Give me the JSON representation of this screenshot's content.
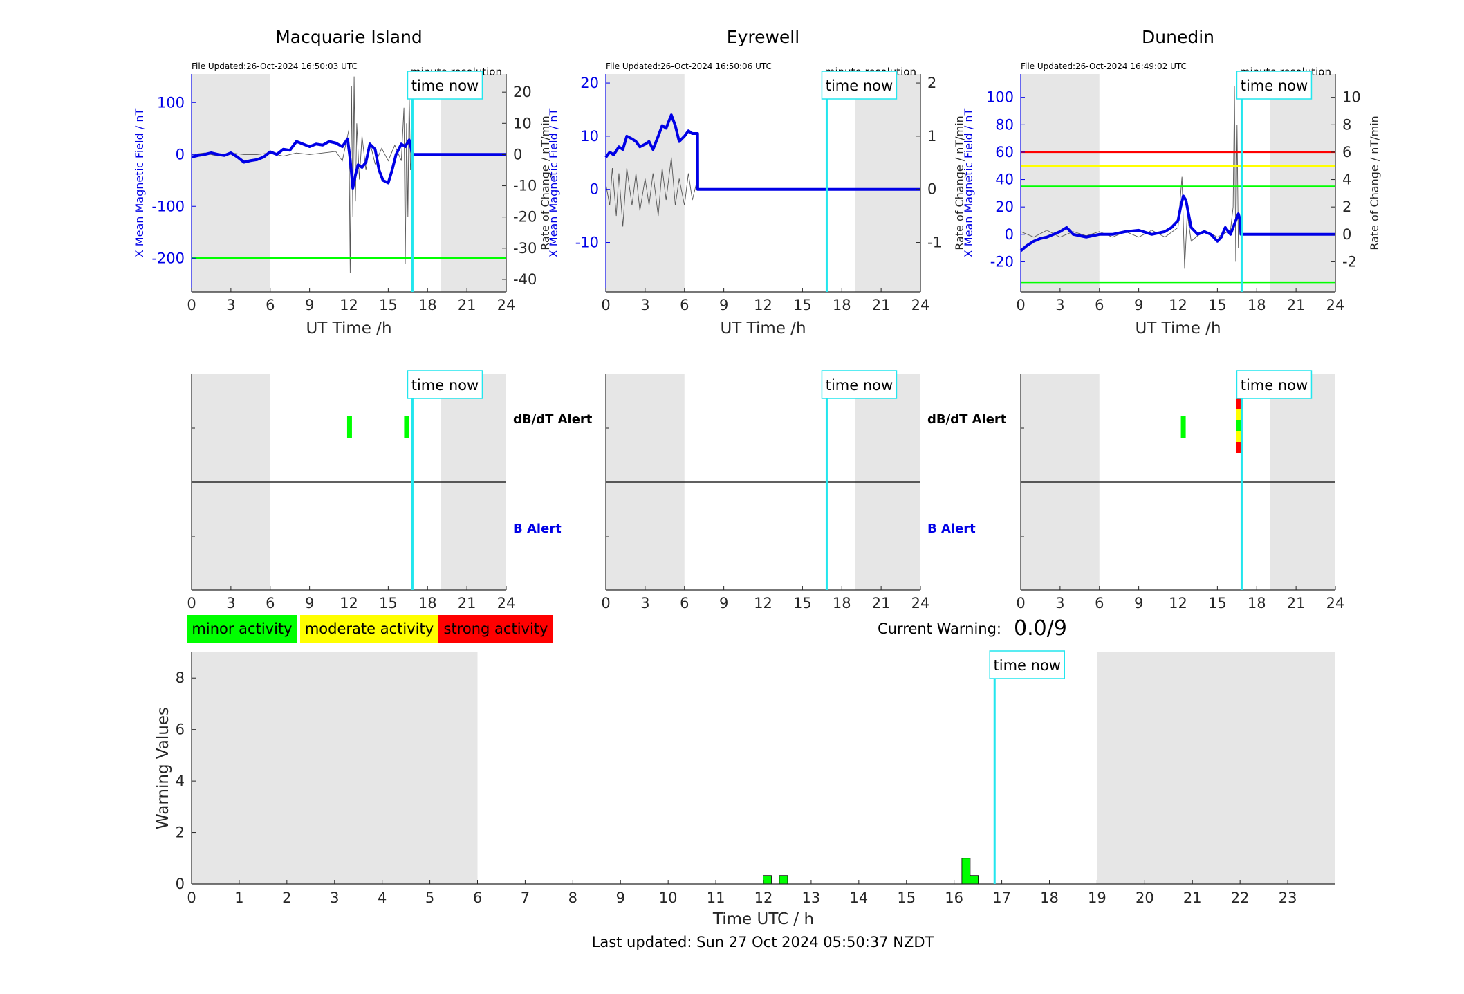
{
  "page": {
    "last_updated_label": "Last updated: Sun 27 Oct 2024 05:50:37 NZDT",
    "current_warning_label": "Current Warning:",
    "current_warning_value": "0.0/9"
  },
  "common": {
    "time_now_label": "time now",
    "time_now_hour": 16.85,
    "minute_resolution_label": "minute resolution",
    "utc_xlabel": "UT Time /h",
    "night_shading": [
      [
        0,
        6
      ],
      [
        19,
        24
      ]
    ],
    "color_blue": "#0000e6",
    "color_cyan": "#22e6ee",
    "color_shade": "#e6e6e6"
  },
  "legend": {
    "items": [
      {
        "label": "minor activity",
        "color": "#00ff00"
      },
      {
        "label": "moderate activity",
        "color": "#ffff00"
      },
      {
        "label": "strong activity",
        "color": "#ff0000"
      }
    ]
  },
  "chart_data": [
    {
      "type": "line",
      "title": "Macquarie Island",
      "file_updated": "File Updated:26-Oct-2024 16:50:03 UTC",
      "xlabel": "UT Time /h",
      "ylabel_left": "X Mean Magnetic Field / nT",
      "ylabel_right": "Rate of Change / nT/min",
      "xlim": [
        0,
        24
      ],
      "xticks": [
        0,
        3,
        6,
        9,
        12,
        15,
        18,
        21,
        24
      ],
      "ylim_left": [
        -265,
        155
      ],
      "yticks_left": [
        -200,
        -100,
        0,
        100
      ],
      "ylim_right": [
        -44,
        25.8
      ],
      "yticks_right": [
        -40,
        -30,
        -20,
        -10,
        0,
        10,
        20
      ],
      "thresholds": [
        {
          "value": -200,
          "color": "#00ff00"
        }
      ],
      "x_field": [
        0,
        0.5,
        1,
        1.5,
        2,
        2.5,
        3,
        3.5,
        4,
        4.5,
        5,
        5.5,
        6,
        6.5,
        7,
        7.5,
        8,
        8.5,
        9,
        9.5,
        10,
        10.5,
        11,
        11.5,
        11.9,
        12.1,
        12.3,
        12.5,
        12.7,
        13,
        13.3,
        13.6,
        14,
        14.3,
        14.6,
        15,
        15.3,
        15.6,
        16,
        16.3,
        16.6,
        16.85,
        24
      ],
      "y_field": [
        -5,
        -2,
        0,
        3,
        0,
        -2,
        3,
        -5,
        -15,
        -12,
        -10,
        -5,
        5,
        0,
        10,
        8,
        25,
        20,
        15,
        20,
        18,
        25,
        22,
        15,
        30,
        -10,
        -65,
        -40,
        -20,
        -25,
        -15,
        20,
        10,
        -30,
        -50,
        -55,
        -30,
        0,
        20,
        15,
        28,
        0,
        0
      ],
      "x_rate": [
        0,
        1,
        2,
        3,
        4,
        5,
        6,
        7,
        8,
        9,
        10,
        11,
        11.5,
        12,
        12.1,
        12.2,
        12.3,
        12.4,
        12.5,
        12.6,
        12.8,
        13,
        13.3,
        13.6,
        14,
        14.5,
        15,
        15.5,
        16,
        16.2,
        16.3,
        16.4,
        16.5,
        16.6,
        16.7,
        16.8
      ],
      "y_rate": [
        0,
        0.5,
        -0.5,
        0.5,
        0,
        0,
        0.5,
        -0.5,
        0.5,
        0,
        0.5,
        1,
        -2,
        8,
        -38,
        22,
        -20,
        25,
        -15,
        10,
        -8,
        6,
        -5,
        4,
        -3,
        2,
        -2,
        3,
        -2,
        15,
        -35,
        10,
        -20,
        20,
        -5,
        0
      ]
    },
    {
      "type": "line",
      "title": "Eyrewell",
      "file_updated": "File Updated:26-Oct-2024 16:50:06 UTC",
      "xlabel": "UT Time /h",
      "ylabel_left": "X Mean Magnetic Field / nT",
      "ylabel_right": "Rate of Change / nT/min",
      "xlim": [
        0,
        24
      ],
      "xticks": [
        0,
        3,
        6,
        9,
        12,
        15,
        18,
        21,
        24
      ],
      "ylim_left": [
        -19.3,
        21.7
      ],
      "yticks_left": [
        -10,
        0,
        10,
        20
      ],
      "ylim_right": [
        -1.93,
        2.17
      ],
      "yticks_right": [
        -1,
        0,
        1,
        2
      ],
      "thresholds": [],
      "x_field": [
        0,
        0.3,
        0.6,
        1,
        1.3,
        1.6,
        2,
        2.3,
        2.6,
        3,
        3.3,
        3.6,
        4,
        4.3,
        4.6,
        5,
        5.3,
        5.6,
        6,
        6.3,
        6.6,
        6.9,
        7.0,
        7.01,
        24
      ],
      "y_field": [
        6,
        7,
        6.5,
        8,
        7.5,
        10,
        9.5,
        9,
        8,
        8.5,
        9,
        7.5,
        10,
        12,
        11.5,
        14,
        12,
        9,
        10,
        11,
        10.5,
        10.5,
        10.5,
        0,
        0
      ],
      "x_rate": [
        0,
        0.3,
        0.5,
        0.8,
        1,
        1.3,
        1.6,
        2,
        2.3,
        2.6,
        3,
        3.3,
        3.6,
        4,
        4.3,
        4.6,
        5,
        5.3,
        5.6,
        6,
        6.3,
        6.6,
        6.9,
        7.0,
        24
      ],
      "y_rate": [
        0.1,
        -0.3,
        0.4,
        -0.5,
        0.3,
        -0.7,
        0.4,
        -0.3,
        0.3,
        -0.4,
        0.2,
        -0.3,
        0.3,
        -0.5,
        0.4,
        -0.2,
        0.6,
        -0.3,
        0.2,
        -0.3,
        0.3,
        -0.2,
        0.1,
        0,
        0
      ]
    },
    {
      "type": "line",
      "title": "Dunedin",
      "file_updated": "File Updated:26-Oct-2024 16:49:02 UTC",
      "xlabel": "UT Time /h",
      "ylabel_left": "X Mean Magnetic Field / nT",
      "ylabel_right": "Rate of Change / nT/min",
      "xlim": [
        0,
        24
      ],
      "xticks": [
        0,
        3,
        6,
        9,
        12,
        15,
        18,
        21,
        24
      ],
      "ylim_left": [
        -42,
        117
      ],
      "yticks_left": [
        -20,
        0,
        20,
        40,
        60,
        80,
        100
      ],
      "ylim_right": [
        -4.2,
        11.7
      ],
      "yticks_right": [
        -2,
        0,
        2,
        4,
        6,
        8,
        10
      ],
      "thresholds": [
        {
          "value": 60,
          "color": "#ff0000"
        },
        {
          "value": 50,
          "color": "#ffff00"
        },
        {
          "value": 35,
          "color": "#00ff00"
        },
        {
          "value": -35,
          "color": "#00ff00"
        }
      ],
      "x_field": [
        0,
        0.5,
        1,
        1.5,
        2,
        2.5,
        3,
        3.5,
        4,
        5,
        6,
        7,
        8,
        9,
        10,
        11,
        11.5,
        12,
        12.2,
        12.4,
        12.6,
        12.8,
        13,
        13.5,
        14,
        14.5,
        15,
        15.3,
        15.6,
        16,
        16.2,
        16.4,
        16.6,
        16.75,
        16.8,
        24
      ],
      "y_field": [
        -12,
        -8,
        -5,
        -3,
        -2,
        0,
        2,
        5,
        0,
        -2,
        0,
        0,
        2,
        3,
        0,
        2,
        5,
        10,
        20,
        28,
        25,
        15,
        5,
        0,
        2,
        0,
        -5,
        -2,
        5,
        0,
        5,
        10,
        15,
        10,
        0,
        0
      ],
      "x_rate": [
        0,
        1,
        2,
        3,
        4,
        5,
        6,
        7,
        8,
        9,
        10,
        11,
        12,
        12.3,
        12.5,
        12.7,
        13,
        14,
        15,
        16,
        16.2,
        16.3,
        16.4,
        16.5,
        16.6,
        16.7,
        16.8
      ],
      "y_rate": [
        0.2,
        -0.2,
        0.3,
        -0.2,
        0.2,
        -0.1,
        0.2,
        -0.2,
        0.2,
        -0.2,
        0.3,
        -0.2,
        0.5,
        4.2,
        -2.5,
        1.5,
        -0.5,
        0.3,
        -0.2,
        0.3,
        2,
        10.8,
        -2,
        8,
        -1,
        1,
        0
      ]
    },
    {
      "type": "bar",
      "title": "",
      "subtype": "alerts",
      "xlim": [
        0,
        24
      ],
      "xticks": [
        0,
        3,
        6,
        9,
        12,
        15,
        18,
        21,
        24
      ],
      "row_labels": [
        "dB/dT Alert",
        "B Alert"
      ],
      "alerts": [
        {
          "row": 0,
          "x": 12.05,
          "color": "#00ff00",
          "level": 1
        },
        {
          "row": 0,
          "x": 16.4,
          "color": "#00ff00",
          "level": 1
        }
      ]
    },
    {
      "type": "bar",
      "title": "",
      "subtype": "alerts",
      "xlim": [
        0,
        24
      ],
      "xticks": [
        0,
        3,
        6,
        9,
        12,
        15,
        18,
        21,
        24
      ],
      "row_labels": [
        "dB/dT Alert",
        "B Alert"
      ],
      "alerts": []
    },
    {
      "type": "bar",
      "title": "",
      "subtype": "alerts",
      "xlim": [
        0,
        24
      ],
      "xticks": [
        0,
        3,
        6,
        9,
        12,
        15,
        18,
        21,
        24
      ],
      "row_labels": [
        "",
        ""
      ],
      "alerts": [
        {
          "row": 0,
          "x": 12.4,
          "color": "#00ff00",
          "level": 1
        },
        {
          "row": 0,
          "x": 16.6,
          "color": "#ff0000",
          "level": 1
        },
        {
          "row": 0,
          "x": 16.6,
          "color": "#ffff00",
          "level": 2
        },
        {
          "row": 0,
          "x": 16.6,
          "color": "#00ff00",
          "level": 3
        },
        {
          "row": 0,
          "x": 16.6,
          "color": "#ffff00",
          "level": 4
        },
        {
          "row": 0,
          "x": 16.6,
          "color": "#ff0000",
          "level": 5
        }
      ]
    },
    {
      "type": "bar",
      "title": "",
      "xlabel": "Time UTC / h",
      "ylabel": "Warning Values",
      "xlim": [
        0,
        24
      ],
      "ylim": [
        0,
        9
      ],
      "xticks": [
        0,
        1,
        2,
        3,
        4,
        5,
        6,
        7,
        8,
        9,
        10,
        11,
        12,
        13,
        14,
        15,
        16,
        17,
        18,
        19,
        20,
        21,
        22,
        23
      ],
      "yticks": [
        0,
        2,
        4,
        6,
        8
      ],
      "night_shading": [
        [
          0,
          6
        ],
        [
          19,
          24
        ]
      ],
      "bars": [
        {
          "x": 12.08,
          "value": 0.33
        },
        {
          "x": 12.42,
          "value": 0.33
        },
        {
          "x": 16.25,
          "value": 1.0
        },
        {
          "x": 16.42,
          "value": 0.33
        }
      ]
    }
  ]
}
